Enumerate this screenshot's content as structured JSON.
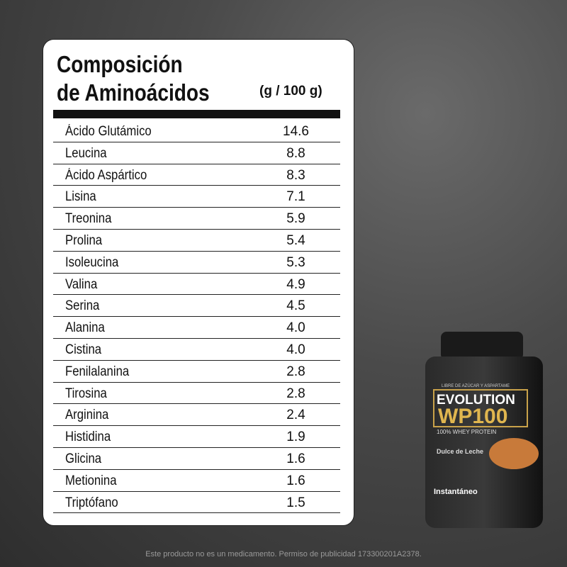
{
  "header": {
    "title_line1": "Composición",
    "title_line2": "de Aminoácidos",
    "unit": "(g / 100 g)"
  },
  "table": {
    "rows": [
      [
        "Ácido Glutámico",
        "14.6"
      ],
      [
        "Leucina",
        "8.8"
      ],
      [
        "Ácido Aspártico",
        "8.3"
      ],
      [
        "Lisina",
        "7.1"
      ],
      [
        "Treonina",
        "5.9"
      ],
      [
        "Prolina",
        "5.4"
      ],
      [
        "Isoleucina",
        "5.3"
      ],
      [
        "Valina",
        "4.9"
      ],
      [
        "Serina",
        "4.5"
      ],
      [
        "Alanina",
        "4.0"
      ],
      [
        "Cistina",
        "4.0"
      ],
      [
        "Fenilalanina",
        "2.8"
      ],
      [
        "Tirosina",
        "2.8"
      ],
      [
        "Arginina",
        "2.4"
      ],
      [
        "Histidina",
        "1.9"
      ],
      [
        "Glicina",
        "1.6"
      ],
      [
        "Metionina",
        "1.6"
      ],
      [
        "Triptófano",
        "1.5"
      ]
    ]
  },
  "product": {
    "tagline": "LIBRE DE AZÚCAR Y ASPARTAME",
    "brand": "EVOLUTION",
    "model": "WP100",
    "subtitle": "100% WHEY PROTEIN",
    "flavor": "Dulce de Leche",
    "type": "Instantáneo"
  },
  "footer": {
    "text": "Este producto no es un medicamento. Permiso de publicidad 173300201A2378."
  }
}
